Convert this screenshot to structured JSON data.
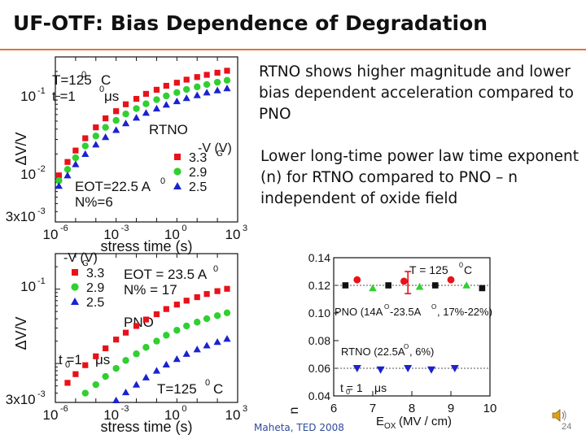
{
  "slide": {
    "title": "UF-OTF: Bias Dependence of Degradation",
    "bullets": [
      "RTNO shows higher magnitude and lower bias dependent acceleration compared to PNO",
      "Lower long-time power law time exponent (n) for RTNO compared to PNO – n independent of oxide field"
    ],
    "citation": "Maheta, TED 2008",
    "page_number": "24",
    "colors": {
      "accent_rule": "#e0703a",
      "red": "#e8121a",
      "green": "#30d030",
      "blue": "#1a22d0",
      "black": "#111111",
      "citation": "#2f4a9a"
    },
    "icons": [
      "speaker-icon"
    ]
  },
  "chart_data": [
    {
      "type": "scatter",
      "title": "",
      "xlabel": "stress time (s)",
      "ylabel": "ΔV/V",
      "xscale": "log",
      "yscale": "log",
      "xlim": [
        1e-06,
        1000.0
      ],
      "ylim": [
        0.003,
        0.3
      ],
      "xtick_labels": [
        "10",
        "10",
        "10",
        "10"
      ],
      "xtick_exponents": [
        "-6",
        "-3",
        "0",
        "3"
      ],
      "ytick_labels": [
        "10",
        "10",
        "3x10"
      ],
      "ytick_exponents": [
        "-1",
        "-2",
        "-3"
      ],
      "legend_title": "-V  (V)",
      "legend_title_sub": "G",
      "annotations": [
        "T=125",
        "0",
        "C",
        "t =1",
        "0",
        "μs",
        "RTNO",
        "EOT=22.5 A",
        "0",
        "N%=6"
      ],
      "series": [
        {
          "name": "3.3",
          "color": "#e8121a",
          "marker": "square",
          "x": [
            1.5e-06,
            4e-06,
            1e-05,
            3e-05,
            0.0001,
            0.0003,
            0.001,
            0.003,
            0.01,
            0.03,
            0.1,
            0.3,
            1,
            3,
            10,
            30,
            100,
            300
          ],
          "y": [
            0.011,
            0.016,
            0.022,
            0.031,
            0.042,
            0.054,
            0.066,
            0.08,
            0.093,
            0.107,
            0.12,
            0.134,
            0.146,
            0.159,
            0.171,
            0.182,
            0.193,
            0.204
          ]
        },
        {
          "name": "2.9",
          "color": "#30d030",
          "marker": "circle",
          "x": [
            1.5e-06,
            4e-06,
            1e-05,
            3e-05,
            0.0001,
            0.0003,
            0.001,
            0.003,
            0.01,
            0.03,
            0.1,
            0.3,
            1,
            3,
            10,
            30,
            100,
            300
          ],
          "y": [
            0.0095,
            0.013,
            0.018,
            0.025,
            0.033,
            0.042,
            0.051,
            0.061,
            0.071,
            0.081,
            0.091,
            0.101,
            0.111,
            0.121,
            0.13,
            0.139,
            0.148,
            0.156
          ]
        },
        {
          "name": "2.5",
          "color": "#1a22d0",
          "marker": "triangle",
          "x": [
            1.5e-06,
            4e-06,
            1e-05,
            3e-05,
            0.0001,
            0.0003,
            0.001,
            0.003,
            0.01,
            0.03,
            0.1,
            0.3,
            1,
            3,
            10,
            30,
            100,
            300
          ],
          "y": [
            0.0082,
            0.011,
            0.015,
            0.02,
            0.026,
            0.032,
            0.039,
            0.047,
            0.055,
            0.063,
            0.071,
            0.079,
            0.087,
            0.095,
            0.103,
            0.111,
            0.118,
            0.125
          ]
        }
      ]
    },
    {
      "type": "scatter",
      "title": "",
      "xlabel": "stress time (s)",
      "ylabel": "ΔV/V",
      "xscale": "log",
      "yscale": "log",
      "xlim": [
        1e-06,
        1000.0
      ],
      "ylim": [
        0.003,
        0.3
      ],
      "xtick_labels": [
        "10",
        "10",
        "10",
        "10"
      ],
      "xtick_exponents": [
        "-6",
        "-3",
        "0",
        "3"
      ],
      "ytick_labels": [
        "10",
        "3x10"
      ],
      "ytick_exponents": [
        "-1",
        "-3"
      ],
      "legend_title": "-V  (V)",
      "legend_title_sub": "G",
      "annotations": [
        "EOT = 23.5 A",
        "0",
        "N% = 17",
        "PNO",
        "t =1",
        "0",
        "μs",
        "T=125",
        "0",
        "C"
      ],
      "series": [
        {
          "name": "3.3",
          "color": "#e8121a",
          "marker": "square",
          "x": [
            4e-06,
            1e-05,
            3e-05,
            0.0001,
            0.0003,
            0.001,
            0.003,
            0.01,
            0.03,
            0.1,
            0.3,
            1,
            3,
            10,
            30,
            100,
            300
          ],
          "y": [
            0.0055,
            0.0072,
            0.0095,
            0.0125,
            0.016,
            0.021,
            0.026,
            0.032,
            0.039,
            0.046,
            0.054,
            0.062,
            0.07,
            0.078,
            0.086,
            0.094,
            0.101
          ]
        },
        {
          "name": "2.9",
          "color": "#30d030",
          "marker": "circle",
          "x": [
            3e-05,
            0.0001,
            0.0003,
            0.001,
            0.003,
            0.01,
            0.03,
            0.1,
            0.3,
            1,
            3,
            10,
            30,
            100,
            300
          ],
          "y": [
            0.004,
            0.0052,
            0.0067,
            0.0086,
            0.011,
            0.0135,
            0.0165,
            0.02,
            0.024,
            0.028,
            0.032,
            0.036,
            0.04,
            0.044,
            0.048
          ]
        },
        {
          "name": "2.5",
          "color": "#1a22d0",
          "marker": "triangle",
          "x": [
            0.001,
            0.003,
            0.01,
            0.03,
            0.1,
            0.3,
            1,
            3,
            10,
            30,
            100,
            300
          ],
          "y": [
            0.0032,
            0.0041,
            0.0052,
            0.0065,
            0.008,
            0.0097,
            0.0115,
            0.0135,
            0.0155,
            0.0175,
            0.0195,
            0.0215
          ]
        }
      ]
    },
    {
      "type": "scatter",
      "title": "",
      "xlabel": "E",
      "xlabel_sub": "OX",
      "xlabel_unit": "(MV / cm)",
      "ylabel": "n",
      "xlim": [
        6,
        10
      ],
      "ylim": [
        0.04,
        0.14
      ],
      "xticks": [
        6,
        7,
        8,
        9,
        10
      ],
      "yticks": [
        0.04,
        0.06,
        0.08,
        0.1,
        0.12,
        0.14
      ],
      "ytick_labels": [
        "0.04",
        "0.06",
        "0.08",
        "0.10",
        "0.12",
        "0.14"
      ],
      "annotations": [
        "T = 125",
        "0",
        "C",
        "PNO (14A",
        "O",
        "-23.5A",
        "O",
        ", 17%-22%)",
        "RTNO (22.5A",
        "O",
        ", 6%)",
        "t  = 1",
        "0",
        "μs"
      ],
      "series": [
        {
          "name": "PNO",
          "x": [
            6.3,
            6.6,
            7.0,
            7.4,
            7.8,
            8.2,
            8.6,
            9.0,
            9.4,
            9.8
          ],
          "y": [
            0.12,
            0.124,
            0.118,
            0.12,
            0.123,
            0.119,
            0.12,
            0.124,
            0.12,
            0.118
          ],
          "colors": [
            "#111111",
            "#e8121a",
            "#30d030",
            "#111111",
            "#e8121a",
            "#30d030",
            "#111111",
            "#e8121a",
            "#30d030",
            "#111111"
          ]
        },
        {
          "name": "RTNO",
          "color": "#1a22d0",
          "marker": "triangle-down",
          "x": [
            6.6,
            7.2,
            7.9,
            8.5,
            9.1
          ],
          "y": [
            0.06,
            0.059,
            0.06,
            0.059,
            0.06
          ]
        }
      ],
      "error_bar": {
        "x": 7.9,
        "y": 0.122,
        "err": 0.008,
        "color": "#e8121a"
      }
    }
  ]
}
